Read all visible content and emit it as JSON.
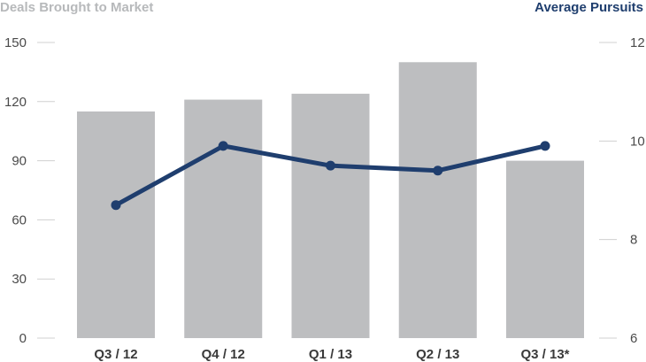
{
  "chart_data": {
    "type": "bar",
    "title_left": "Deals Brought to Market",
    "title_right": "Average Pursuits",
    "categories": [
      "Q3 / 12",
      "Q4 / 12",
      "Q1 / 13",
      "Q2 / 13",
      "Q3 / 13*"
    ],
    "series": [
      {
        "axis": "left",
        "type": "bar",
        "color": "#bdbec0",
        "values": [
          115,
          121,
          124,
          140,
          90
        ]
      },
      {
        "axis": "right",
        "type": "line",
        "color": "#1f3e6e",
        "values": [
          8.7,
          9.9,
          9.5,
          9.4,
          9.9
        ]
      }
    ],
    "y_left": {
      "ylim": [
        0,
        150
      ],
      "ticks": [
        0,
        30,
        60,
        90,
        120,
        150
      ]
    },
    "y_right": {
      "ylim": [
        6,
        12
      ],
      "ticks": [
        6,
        8,
        10,
        12
      ]
    },
    "grid": false
  }
}
